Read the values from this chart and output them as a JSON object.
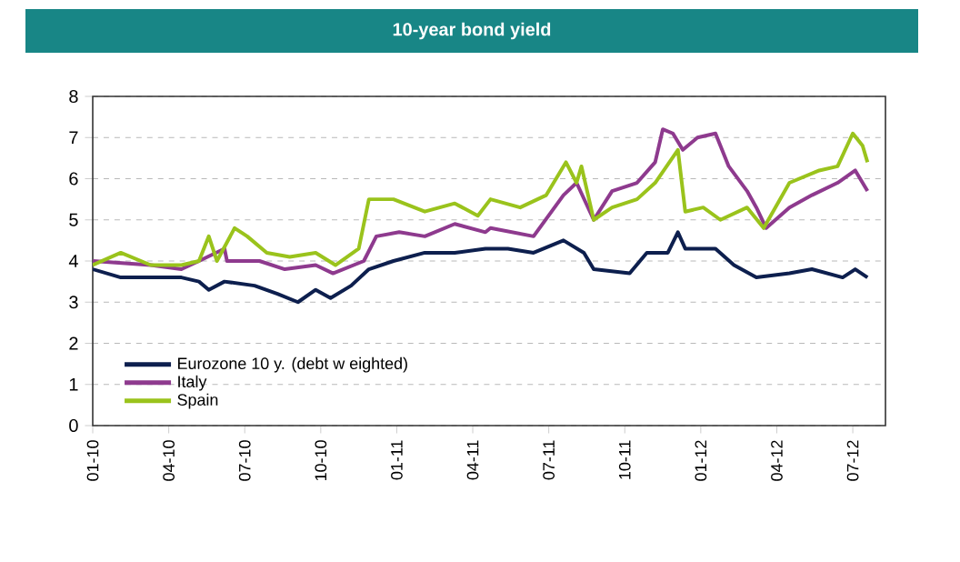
{
  "chart_data": {
    "type": "line",
    "title": "10-year bond yield",
    "xlim": [
      "2010-01-01",
      "2012-08-10"
    ],
    "ylim": [
      0,
      8
    ],
    "yticks": [
      0,
      1,
      2,
      3,
      4,
      5,
      6,
      7,
      8
    ],
    "xticks": [
      {
        "value": "2010-01",
        "label": "01-10"
      },
      {
        "value": "2010-04",
        "label": "04-10"
      },
      {
        "value": "2010-07",
        "label": "07-10"
      },
      {
        "value": "2010-10",
        "label": "10-10"
      },
      {
        "value": "2011-01",
        "label": "01-11"
      },
      {
        "value": "2011-04",
        "label": "04-11"
      },
      {
        "value": "2011-07",
        "label": "07-11"
      },
      {
        "value": "2011-10",
        "label": "10-11"
      },
      {
        "value": "2012-01",
        "label": "01-12"
      },
      {
        "value": "2012-04",
        "label": "04-12"
      },
      {
        "value": "2012-07",
        "label": "07-12"
      }
    ],
    "grid": "y",
    "legend": "bottom left",
    "marker": "none",
    "line_style": "solid",
    "series": [
      {
        "name": "Eurozone 10 y. (debt w eighted)",
        "color": "#0d1f4e",
        "x": [
          "2010-01-01",
          "2010-02-04",
          "2010-04-16",
          "2010-05-07",
          "2010-05-19",
          "2010-06-07",
          "2010-07-13",
          "2010-08-10",
          "2010-09-04",
          "2010-09-25",
          "2010-10-13",
          "2010-11-07",
          "2010-11-28",
          "2010-12-28",
          "2011-02-04",
          "2011-03-10",
          "2011-04-16",
          "2011-05-13",
          "2011-06-13",
          "2011-07-19",
          "2011-08-13",
          "2011-08-25",
          "2011-10-07",
          "2011-10-28",
          "2011-11-22",
          "2011-12-04",
          "2011-12-13",
          "2012-01-19",
          "2012-02-10",
          "2012-03-07",
          "2012-04-16",
          "2012-05-13",
          "2012-06-19",
          "2012-07-04",
          "2012-07-19"
        ],
        "values": [
          3.8,
          3.6,
          3.6,
          3.5,
          3.3,
          3.5,
          3.4,
          3.2,
          3.0,
          3.3,
          3.1,
          3.4,
          3.8,
          4.0,
          4.2,
          4.2,
          4.3,
          4.3,
          4.2,
          4.5,
          4.2,
          3.8,
          3.7,
          4.2,
          4.2,
          4.7,
          4.3,
          4.3,
          3.9,
          3.6,
          3.7,
          3.8,
          3.6,
          3.8,
          3.6
        ]
      },
      {
        "name": "Italy",
        "color": "#8e3a8e",
        "x": [
          "2010-01-01",
          "2010-03-10",
          "2010-04-16",
          "2010-05-07",
          "2010-06-07",
          "2010-06-10",
          "2010-07-19",
          "2010-08-19",
          "2010-09-25",
          "2010-10-16",
          "2010-11-22",
          "2010-12-07",
          "2011-01-04",
          "2011-02-04",
          "2011-03-10",
          "2011-04-16",
          "2011-04-22",
          "2011-06-13",
          "2011-07-19",
          "2011-08-04",
          "2011-08-25",
          "2011-09-16",
          "2011-10-16",
          "2011-11-07",
          "2011-11-16",
          "2011-11-28",
          "2011-12-10",
          "2011-12-28",
          "2012-01-19",
          "2012-02-04",
          "2012-02-25",
          "2012-03-07",
          "2012-03-19",
          "2012-04-16",
          "2012-05-13",
          "2012-06-13",
          "2012-07-04",
          "2012-07-19"
        ],
        "values": [
          4.0,
          3.9,
          3.8,
          4.0,
          4.3,
          4.0,
          4.0,
          3.8,
          3.9,
          3.7,
          4.0,
          4.6,
          4.7,
          4.6,
          4.9,
          4.7,
          4.8,
          4.6,
          5.6,
          5.9,
          5.0,
          5.7,
          5.9,
          6.4,
          7.2,
          7.1,
          6.7,
          7.0,
          7.1,
          6.3,
          5.7,
          5.3,
          4.8,
          5.3,
          5.6,
          5.9,
          6.2,
          5.7
        ]
      },
      {
        "name": "Spain",
        "color": "#9ac31c",
        "x": [
          "2010-01-01",
          "2010-02-04",
          "2010-03-10",
          "2010-04-16",
          "2010-05-07",
          "2010-05-19",
          "2010-05-29",
          "2010-06-19",
          "2010-07-04",
          "2010-07-28",
          "2010-08-25",
          "2010-09-25",
          "2010-10-19",
          "2010-11-16",
          "2010-11-28",
          "2010-12-28",
          "2011-02-04",
          "2011-03-10",
          "2011-04-07",
          "2011-04-22",
          "2011-05-28",
          "2011-06-28",
          "2011-07-22",
          "2011-08-04",
          "2011-08-10",
          "2011-08-25",
          "2011-09-16",
          "2011-10-16",
          "2011-11-07",
          "2011-12-04",
          "2011-12-13",
          "2012-01-04",
          "2012-01-25",
          "2012-02-25",
          "2012-03-16",
          "2012-04-16",
          "2012-05-22",
          "2012-06-13",
          "2012-07-01",
          "2012-07-13",
          "2012-07-19"
        ],
        "values": [
          3.9,
          4.2,
          3.9,
          3.9,
          4.0,
          4.6,
          4.0,
          4.8,
          4.6,
          4.2,
          4.1,
          4.2,
          3.9,
          4.3,
          5.5,
          5.5,
          5.2,
          5.4,
          5.1,
          5.5,
          5.3,
          5.6,
          6.4,
          5.9,
          6.3,
          5.0,
          5.3,
          5.5,
          5.9,
          6.7,
          5.2,
          5.3,
          5.0,
          5.3,
          4.8,
          5.9,
          6.2,
          6.3,
          7.1,
          6.8,
          6.4
        ]
      }
    ]
  }
}
